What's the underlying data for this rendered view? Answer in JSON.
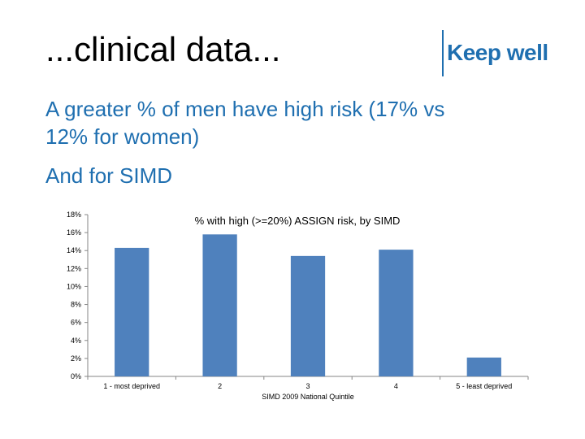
{
  "slide": {
    "title": "...clinical data...",
    "logo_text": "Keep well",
    "body_lines": [
      "A greater % of men have high risk (17% vs",
      "12% for women)",
      "And for SIMD"
    ]
  },
  "colors": {
    "accent": "#1f6fb0",
    "bar": "#4f81bd"
  },
  "chart_data": {
    "type": "bar",
    "title": "% with high (>=20%) ASSIGN risk, by SIMD",
    "xlabel": "SIMD 2009 National Quintile",
    "ylabel": "",
    "categories": [
      "1 - most deprived",
      "2",
      "3",
      "4",
      "5 - least deprived"
    ],
    "values": [
      14.3,
      15.8,
      13.4,
      14.1,
      2.1
    ],
    "ylim": [
      0,
      18
    ],
    "yticks": [
      "0%",
      "2%",
      "4%",
      "6%",
      "8%",
      "10%",
      "12%",
      "14%",
      "16%",
      "18%"
    ],
    "grid": false,
    "legend": "none"
  }
}
